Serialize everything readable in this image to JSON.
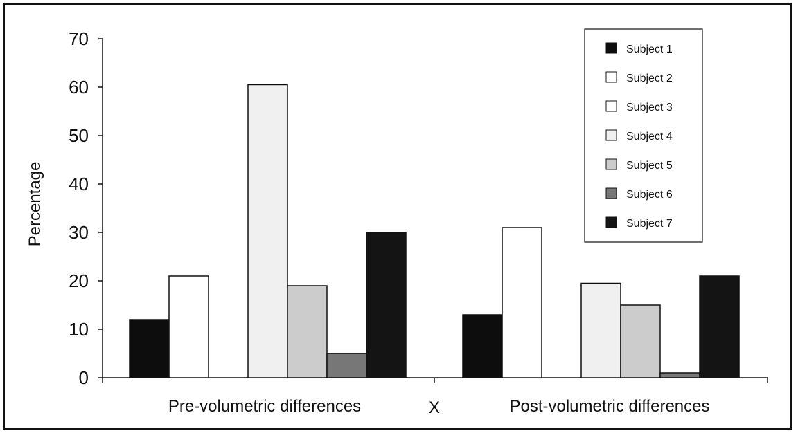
{
  "chart_data": {
    "type": "bar",
    "title": "",
    "xlabel": "",
    "ylabel": "Percentage",
    "ylim": [
      0,
      70
    ],
    "yticks": [
      0,
      10,
      20,
      30,
      40,
      50,
      60,
      70
    ],
    "categories": [
      "Pre-volumetric differences",
      "Post-volumetric differences"
    ],
    "separator_label": "X",
    "grid": false,
    "legend_position": "top-right",
    "series": [
      {
        "name": "Subject 1",
        "color": "#0d0d0d",
        "values": [
          12,
          13
        ]
      },
      {
        "name": "Subject 2",
        "color": "#ffffff",
        "values": [
          21,
          31
        ]
      },
      {
        "name": "Subject 3",
        "color": "#ffffff",
        "values": [
          0,
          0
        ]
      },
      {
        "name": "Subject 4",
        "color": "#f0f0f0",
        "values": [
          60.5,
          19.5
        ]
      },
      {
        "name": "Subject 5",
        "color": "#cccccc",
        "values": [
          19,
          15
        ]
      },
      {
        "name": "Subject 6",
        "color": "#777777",
        "values": [
          5,
          1
        ]
      },
      {
        "name": "Subject 7",
        "color": "#141414",
        "values": [
          30,
          21
        ]
      }
    ]
  }
}
